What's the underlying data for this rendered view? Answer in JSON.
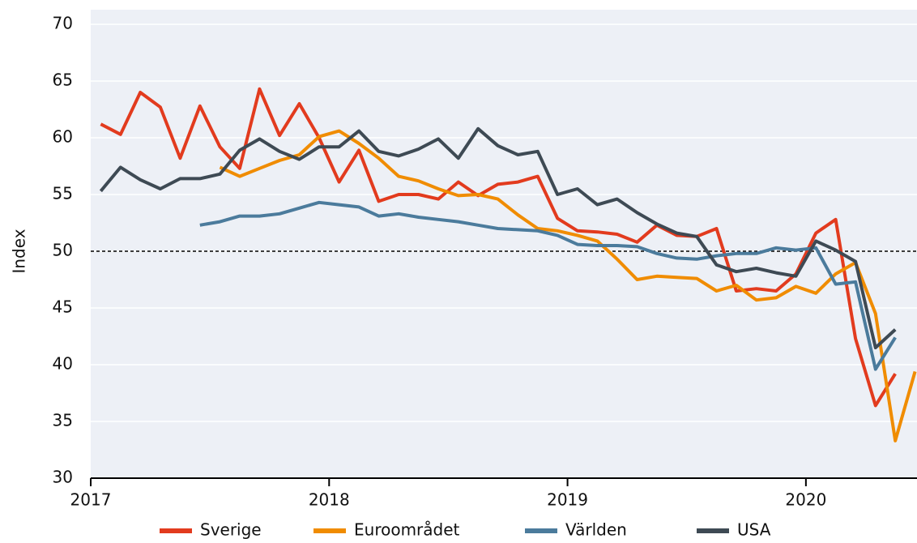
{
  "chart_data": {
    "type": "line",
    "axis_label_y": "Index",
    "x": [
      2017.042,
      2017.125,
      2017.208,
      2017.292,
      2017.375,
      2017.458,
      2017.542,
      2017.625,
      2017.708,
      2017.792,
      2017.875,
      2017.958,
      2018.042,
      2018.125,
      2018.208,
      2018.292,
      2018.375,
      2018.458,
      2018.542,
      2018.625,
      2018.708,
      2018.792,
      2018.875,
      2018.958,
      2019.042,
      2019.125,
      2019.208,
      2019.292,
      2019.375,
      2019.458,
      2019.542,
      2019.625,
      2019.708,
      2019.792,
      2019.875,
      2019.958,
      2020.042,
      2020.125,
      2020.208,
      2020.292,
      2020.375,
      2020.458
    ],
    "xlim": [
      2017,
      2020.466
    ],
    "xticks": [
      2017,
      2018,
      2019,
      2020
    ],
    "ylim": [
      30,
      70
    ],
    "yticks": [
      30,
      35,
      40,
      45,
      50,
      55,
      60,
      65,
      70
    ],
    "grid": true,
    "reference_line": 50,
    "legend": "bottom",
    "series": [
      {
        "name": "Sverige",
        "color": "#e23b1e",
        "values": [
          61.2,
          60.3,
          64.0,
          62.7,
          58.2,
          62.8,
          59.2,
          57.3,
          64.3,
          60.2,
          63.0,
          60.0,
          56.1,
          58.9,
          54.4,
          55.0,
          55.0,
          54.6,
          56.1,
          54.9,
          55.9,
          56.1,
          56.6,
          52.9,
          51.8,
          51.7,
          51.5,
          50.8,
          52.3,
          51.4,
          51.3,
          52.0,
          46.5,
          46.7,
          46.5,
          48.0,
          51.6,
          52.8,
          42.3,
          36.4,
          39.2,
          null
        ]
      },
      {
        "name": "Euroområdet",
        "color": "#f08c00",
        "values": [
          null,
          null,
          null,
          null,
          null,
          null,
          57.4,
          56.6,
          57.3,
          58.0,
          58.5,
          60.1,
          60.6,
          59.5,
          58.2,
          56.6,
          56.2,
          55.5,
          54.9,
          55.0,
          54.6,
          53.2,
          52.0,
          51.8,
          51.4,
          50.9,
          49.3,
          47.5,
          47.8,
          47.7,
          47.6,
          46.5,
          47.0,
          45.7,
          45.9,
          46.9,
          46.3,
          48.0,
          49.0,
          44.5,
          33.3,
          39.4
        ]
      },
      {
        "name": "Världen",
        "color": "#4b7b9c",
        "values": [
          null,
          null,
          null,
          null,
          null,
          52.3,
          52.6,
          53.1,
          53.1,
          53.3,
          53.8,
          54.3,
          54.1,
          53.9,
          53.1,
          53.3,
          53.0,
          52.8,
          52.6,
          52.3,
          52.0,
          51.9,
          51.8,
          51.4,
          50.6,
          50.5,
          50.5,
          50.4,
          49.8,
          49.4,
          49.3,
          49.6,
          49.8,
          49.8,
          50.3,
          50.1,
          50.3,
          47.1,
          47.3,
          39.6,
          42.4,
          null
        ]
      },
      {
        "name": "USA",
        "color": "#3e4a54",
        "values": [
          55.3,
          57.4,
          56.3,
          55.5,
          56.4,
          56.4,
          56.8,
          58.9,
          59.9,
          58.8,
          58.1,
          59.2,
          59.2,
          60.6,
          58.8,
          58.4,
          59.0,
          59.9,
          58.2,
          60.8,
          59.3,
          58.5,
          58.8,
          55.0,
          55.5,
          54.1,
          54.6,
          53.4,
          52.4,
          51.6,
          51.3,
          48.8,
          48.2,
          48.5,
          48.1,
          47.8,
          50.9,
          50.1,
          49.1,
          41.5,
          43.1,
          null
        ]
      }
    ]
  }
}
